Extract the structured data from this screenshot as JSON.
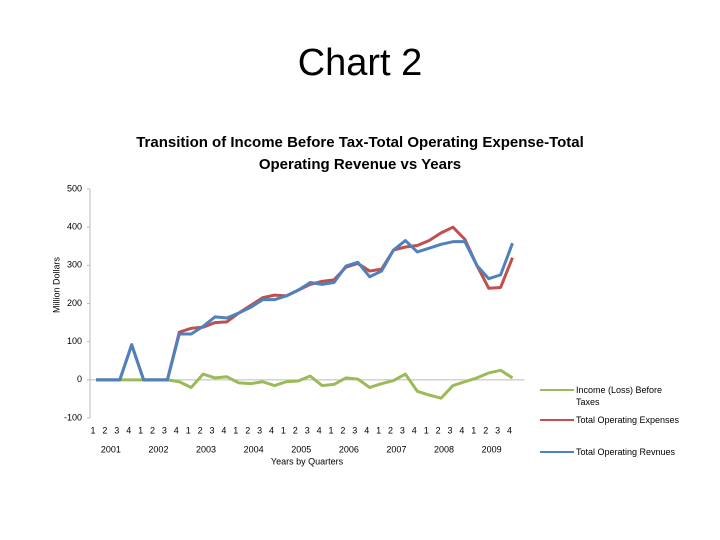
{
  "slide_title": "Chart 2",
  "chart_data": {
    "type": "line",
    "title": "Transition of Income Before Tax-Total Operating Expense-Total Operating Revenue vs Years",
    "y_label": "Million Dollars",
    "x_label": "Years by Quarters",
    "categories": [
      "1",
      "2",
      "3",
      "4",
      "1",
      "2",
      "3",
      "4",
      "1",
      "2",
      "3",
      "4",
      "1",
      "2",
      "3",
      "4",
      "1",
      "2",
      "3",
      "4",
      "1",
      "2",
      "3",
      "4",
      "1",
      "2",
      "3",
      "4",
      "1",
      "2",
      "3",
      "4",
      "1",
      "2",
      "3",
      "4"
    ],
    "year_labels": [
      "2001",
      "2002",
      "2003",
      "2004",
      "2005",
      "2006",
      "2007",
      "2008",
      "2009"
    ],
    "ylim": [
      -100,
      500
    ],
    "yticks": [
      -100,
      0,
      100,
      200,
      300,
      400,
      500
    ],
    "series": [
      {
        "name": "Income (Loss) Before Taxes",
        "color": "#9bbb59",
        "values": [
          0,
          0,
          0,
          0,
          0,
          0,
          0,
          -5,
          -20,
          15,
          5,
          8,
          -8,
          -10,
          -5,
          -15,
          -5,
          -3,
          10,
          -15,
          -12,
          5,
          2,
          -20,
          -10,
          -2,
          15,
          -30,
          -40,
          -48,
          -15,
          -5,
          5,
          18,
          25,
          5
        ]
      },
      {
        "name": "Total Operating Expenses",
        "color": "#c0504d",
        "values": [
          0,
          0,
          0,
          92,
          0,
          0,
          0,
          125,
          135,
          138,
          150,
          152,
          175,
          195,
          215,
          222,
          220,
          235,
          250,
          258,
          262,
          295,
          305,
          285,
          290,
          340,
          348,
          352,
          365,
          385,
          400,
          368,
          300,
          240,
          242,
          320
        ]
      },
      {
        "name": "Total Operating Revnues",
        "color": "#4f81bd",
        "values": [
          0,
          0,
          0,
          92,
          0,
          0,
          0,
          120,
          120,
          140,
          165,
          162,
          175,
          190,
          210,
          210,
          220,
          235,
          255,
          250,
          255,
          298,
          308,
          270,
          285,
          340,
          365,
          335,
          345,
          355,
          362,
          362,
          300,
          265,
          275,
          358
        ]
      }
    ]
  }
}
